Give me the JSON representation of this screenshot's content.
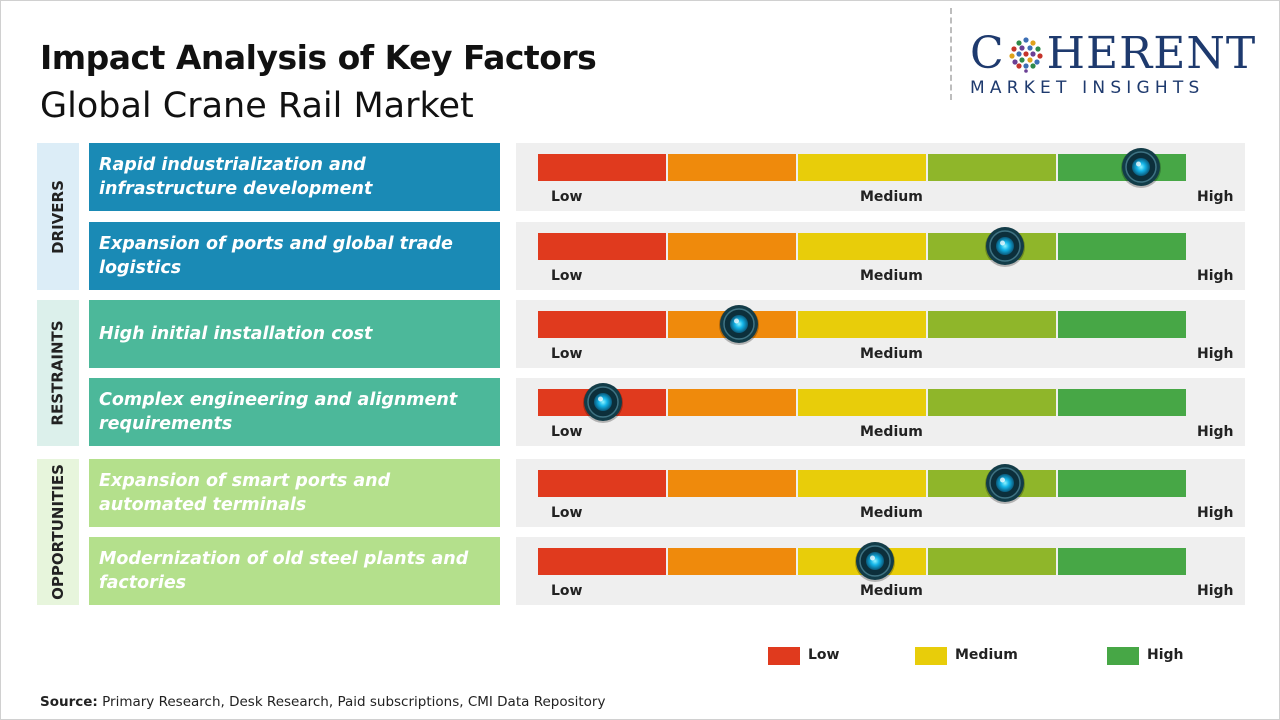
{
  "header": {
    "title": "Impact Analysis of Key Factors",
    "subtitle": "Global Crane Rail Market"
  },
  "logo": {
    "word_start": "C",
    "word_end": "HERENT",
    "tagline": "MARKET INSIGHTS",
    "color": "#1e3a6e"
  },
  "categories": [
    {
      "label": "DRIVERS",
      "bg": "#dcedf7"
    },
    {
      "label": "RESTRAINTS",
      "bg": "#dcf0eb"
    },
    {
      "label": "OPPORTUNITIES",
      "bg": "#e7f5dc"
    }
  ],
  "scale": {
    "low": "Low",
    "medium": "Medium",
    "high": "High",
    "segment_colors": [
      "#e03a1e",
      "#ef8a0c",
      "#e8cd0a",
      "#8fb62a",
      "#47a746"
    ]
  },
  "chart_data": {
    "type": "gauge",
    "title": "Impact Analysis of Key Factors",
    "subtitle": "Global Crane Rail Market",
    "scale": [
      "Low",
      "Medium",
      "High"
    ],
    "range": [
      0,
      1
    ],
    "factors": [
      {
        "category": "DRIVERS",
        "label": "Rapid industrialization and infrastructure development",
        "impact": 0.93,
        "color": "#1a8ab5"
      },
      {
        "category": "DRIVERS",
        "label": "Expansion of ports and global trade logistics",
        "impact": 0.72,
        "color": "#1a8ab5"
      },
      {
        "category": "RESTRAINTS",
        "label": "High initial installation cost",
        "impact": 0.31,
        "color": "#4cb89a"
      },
      {
        "category": "RESTRAINTS",
        "label": "Complex engineering and alignment requirements",
        "impact": 0.1,
        "color": "#4cb89a"
      },
      {
        "category": "OPPORTUNITIES",
        "label": "Expansion of smart ports and automated terminals",
        "impact": 0.72,
        "color": "#b4e08c"
      },
      {
        "category": "OPPORTUNITIES",
        "label": "Modernization of old steel plants and factories",
        "impact": 0.52,
        "color": "#b4e08c"
      }
    ],
    "legend": [
      {
        "label": "Low",
        "color": "#e03a1e"
      },
      {
        "label": "Medium",
        "color": "#e8cd0a"
      },
      {
        "label": "High",
        "color": "#47a746"
      }
    ],
    "legend_position": "bottom-right"
  },
  "source": {
    "label": "Source:",
    "text": "Primary Research, Desk Research, Paid subscriptions, CMI Data Repository"
  }
}
